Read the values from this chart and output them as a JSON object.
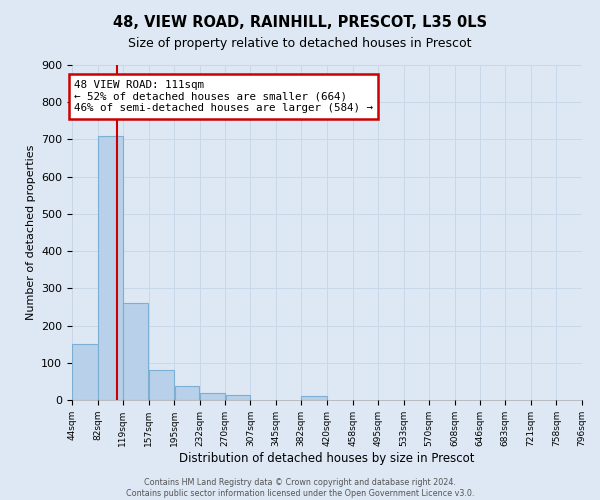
{
  "title": "48, VIEW ROAD, RAINHILL, PRESCOT, L35 0LS",
  "subtitle": "Size of property relative to detached houses in Prescot",
  "xlabel": "Distribution of detached houses by size in Prescot",
  "ylabel": "Number of detached properties",
  "bar_edges": [
    44,
    82,
    119,
    157,
    195,
    232,
    270,
    307,
    345,
    382,
    420,
    458,
    495,
    533,
    570,
    608,
    646,
    683,
    721,
    758,
    796
  ],
  "bar_heights": [
    150,
    710,
    260,
    80,
    37,
    20,
    13,
    0,
    0,
    10,
    0,
    0,
    0,
    0,
    0,
    0,
    0,
    0,
    0,
    0
  ],
  "bar_color": "#b8d0ea",
  "bar_edge_color": "#7bafd4",
  "grid_color": "#c8d8e8",
  "plot_bg_color": "#dde8f4",
  "fig_bg_color": "#dde8f4",
  "vline_x": 111,
  "vline_color": "#cc0000",
  "annotation_title": "48 VIEW ROAD: 111sqm",
  "annotation_line1": "← 52% of detached houses are smaller (664)",
  "annotation_line2": "46% of semi-detached houses are larger (584) →",
  "annotation_box_color": "#cc0000",
  "ylim": [
    0,
    900
  ],
  "yticks": [
    0,
    100,
    200,
    300,
    400,
    500,
    600,
    700,
    800,
    900
  ],
  "tick_labels": [
    "44sqm",
    "82sqm",
    "119sqm",
    "157sqm",
    "195sqm",
    "232sqm",
    "270sqm",
    "307sqm",
    "345sqm",
    "382sqm",
    "420sqm",
    "458sqm",
    "495sqm",
    "533sqm",
    "570sqm",
    "608sqm",
    "646sqm",
    "683sqm",
    "721sqm",
    "758sqm",
    "796sqm"
  ],
  "footer_line1": "Contains HM Land Registry data © Crown copyright and database right 2024.",
  "footer_line2": "Contains public sector information licensed under the Open Government Licence v3.0."
}
